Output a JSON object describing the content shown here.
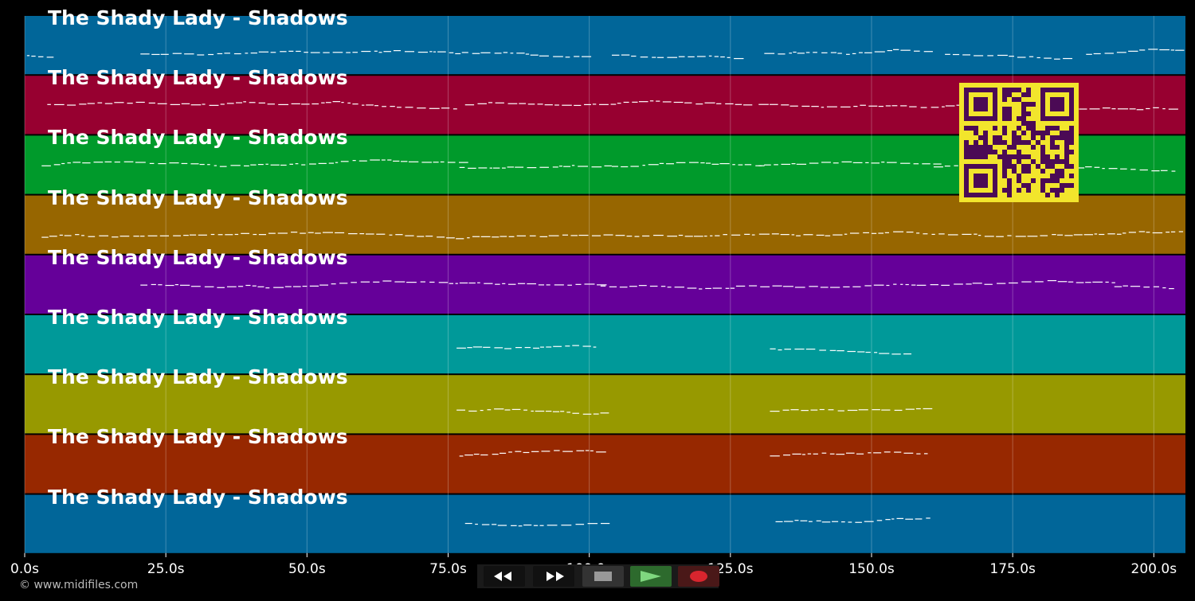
{
  "colors": {
    "background": "#000000",
    "note": "#ffffff",
    "grid": "#ffffff",
    "qr_fg": "#f2e52c",
    "qr_bg": "#4b0a55"
  },
  "tracks": [
    {
      "title": "The Shady Lady - Shadows",
      "color": "#016699"
    },
    {
      "title": "The Shady Lady - Shadows",
      "color": "#970030"
    },
    {
      "title": "The Shady Lady - Shadows",
      "color": "#009a2b"
    },
    {
      "title": "The Shady Lady - Shadows",
      "color": "#976600"
    },
    {
      "title": "The Shady Lady - Shadows",
      "color": "#650099"
    },
    {
      "title": "The Shady Lady - Shadows",
      "color": "#009999"
    },
    {
      "title": "The Shady Lady - Shadows",
      "color": "#979900"
    },
    {
      "title": "The Shady Lady - Shadows",
      "color": "#972800"
    },
    {
      "title": "The Shady Lady - Shadows",
      "color": "#016699"
    }
  ],
  "time_axis": {
    "unit": "s",
    "ticks": [
      "0.0s",
      "25.0s",
      "50.0s",
      "75.0s",
      "100.0s",
      "125.0s",
      "150.0s",
      "175.0s",
      "200.0s"
    ]
  },
  "copyright": "© www.midifiles.com",
  "transport": {
    "rewind": {
      "icon": "rewind-icon",
      "color": "#ffffff"
    },
    "forward": {
      "icon": "fast-forward-icon",
      "color": "#ffffff"
    },
    "stop": {
      "icon": "stop-icon",
      "color": "#888888"
    },
    "play": {
      "icon": "play-icon",
      "color": "#2d6a2d"
    },
    "record": {
      "icon": "record-icon",
      "color": "#5a1a1a"
    }
  }
}
